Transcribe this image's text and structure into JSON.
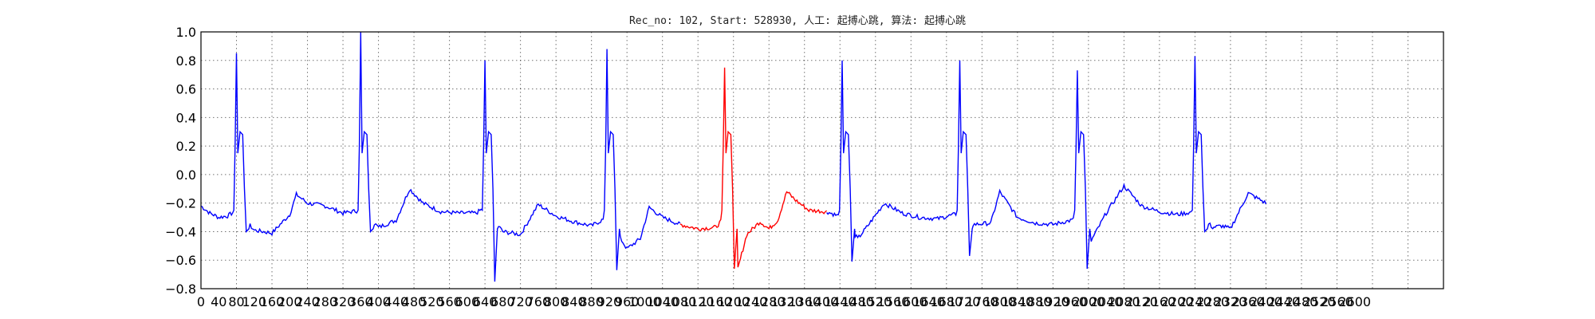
{
  "chart_data": {
    "type": "line",
    "title": "Rec_no: 102, Start: 528930, 人工: 起搏心跳, 算法: 起搏心跳",
    "xlabel": "",
    "ylabel": "",
    "xlim": [
      0,
      2800
    ],
    "ylim": [
      -0.8,
      1.0
    ],
    "grid": true,
    "y_ticks": [
      "1.0",
      "0.8",
      "0.6",
      "0.4",
      "0.2",
      "0.0",
      "−0.2",
      "−0.4",
      "−0.6",
      "−0.8"
    ],
    "y_tick_values": [
      1.0,
      0.8,
      0.6,
      0.4,
      0.2,
      0.0,
      -0.2,
      -0.4,
      -0.6,
      -0.8
    ],
    "x_ticks": [
      "0",
      "40",
      "80",
      "120",
      "160",
      "200",
      "240",
      "280",
      "320",
      "360",
      "400",
      "440",
      "480",
      "520",
      "560",
      "600",
      "640",
      "680",
      "720",
      "760",
      "800",
      "840",
      "880",
      "920",
      "960",
      "1000",
      "1040",
      "1080",
      "1120",
      "1160",
      "1200",
      "1240",
      "1280",
      "1320",
      "1360",
      "1400",
      "1440",
      "1480",
      "1520",
      "1560",
      "1600",
      "1640",
      "1680",
      "1720",
      "1760",
      "1800",
      "1840",
      "1880",
      "1920",
      "1960",
      "2000",
      "2040",
      "2080",
      "2120",
      "2160",
      "2200",
      "2240",
      "2280",
      "2320",
      "2360",
      "2400",
      "2440",
      "2480",
      "2520",
      "2560",
      "2600"
    ],
    "x_tick_values": [
      0,
      40,
      80,
      120,
      160,
      200,
      240,
      280,
      320,
      360,
      400,
      440,
      480,
      520,
      560,
      600,
      640,
      680,
      720,
      760,
      800,
      840,
      880,
      920,
      960,
      1000,
      1040,
      1080,
      1120,
      1160,
      1200,
      1240,
      1280,
      1320,
      1360,
      1400,
      1440,
      1480,
      1520,
      1560,
      1600,
      1640,
      1680,
      1720,
      1760,
      1800,
      1840,
      1880,
      1920,
      1960,
      2000,
      2040,
      2080,
      2120,
      2160,
      2200,
      2240,
      2280,
      2320,
      2360,
      2400,
      2440,
      2480,
      2520,
      2560,
      2600
    ],
    "x_grid_values": [
      0,
      80,
      160,
      240,
      320,
      400,
      480,
      560,
      640,
      720,
      800,
      880,
      960,
      1040,
      1120,
      1200,
      1280,
      1360,
      1440,
      1520,
      1600,
      1680,
      1760,
      1840,
      1920,
      2000,
      2080,
      2160,
      2240,
      2320,
      2400,
      2480,
      2560,
      2640,
      2720,
      2800
    ],
    "series": [
      {
        "color": "#0000ff",
        "beat_centers": [
          80,
          360,
          640,
          915,
          1445,
          1710,
          1975,
          2240
        ],
        "baseline_points": [
          [
            0,
            -0.22
          ],
          [
            20,
            -0.27
          ],
          [
            40,
            -0.3
          ],
          [
            60,
            -0.29
          ],
          [
            80,
            -0.25
          ],
          [
            120,
            -0.39
          ],
          [
            160,
            -0.41
          ],
          [
            200,
            -0.28
          ],
          [
            215,
            -0.14
          ],
          [
            240,
            -0.2
          ],
          [
            280,
            -0.22
          ],
          [
            320,
            -0.27
          ],
          [
            360,
            -0.25
          ],
          [
            400,
            -0.37
          ],
          [
            440,
            -0.32
          ],
          [
            470,
            -0.1
          ],
          [
            500,
            -0.2
          ],
          [
            540,
            -0.26
          ],
          [
            580,
            -0.27
          ],
          [
            620,
            -0.27
          ],
          [
            640,
            -0.23
          ],
          [
            680,
            -0.4
          ],
          [
            720,
            -0.42
          ],
          [
            760,
            -0.21
          ],
          [
            800,
            -0.29
          ],
          [
            840,
            -0.33
          ],
          [
            880,
            -0.36
          ],
          [
            915,
            -0.3
          ],
          [
            960,
            -0.52
          ],
          [
            990,
            -0.45
          ],
          [
            1010,
            -0.23
          ],
          [
            1040,
            -0.3
          ],
          [
            1080,
            -0.35
          ]
        ],
        "baseline_points_2": [
          [
            1410,
            -0.26
          ],
          [
            1445,
            -0.3
          ],
          [
            1480,
            -0.45
          ],
          [
            1500,
            -0.37
          ],
          [
            1540,
            -0.2
          ],
          [
            1580,
            -0.27
          ],
          [
            1620,
            -0.3
          ],
          [
            1660,
            -0.31
          ],
          [
            1710,
            -0.27
          ],
          [
            1740,
            -0.35
          ],
          [
            1780,
            -0.34
          ],
          [
            1800,
            -0.12
          ],
          [
            1840,
            -0.3
          ],
          [
            1880,
            -0.34
          ],
          [
            1920,
            -0.35
          ],
          [
            1975,
            -0.31
          ],
          [
            2000,
            -0.5
          ],
          [
            2040,
            -0.27
          ],
          [
            2080,
            -0.08
          ],
          [
            2120,
            -0.22
          ],
          [
            2160,
            -0.26
          ],
          [
            2200,
            -0.28
          ],
          [
            2240,
            -0.26
          ],
          [
            2280,
            -0.37
          ],
          [
            2300,
            -0.36
          ],
          [
            2320,
            -0.38
          ],
          [
            2360,
            -0.13
          ],
          [
            2400,
            -0.2
          ]
        ]
      },
      {
        "color": "#ff0000",
        "beat_centers": [
          1180
        ],
        "points": [
          [
            1080,
            -0.35
          ],
          [
            1120,
            -0.38
          ],
          [
            1160,
            -0.37
          ],
          [
            1180,
            -0.3
          ],
          [
            1210,
            -0.66
          ],
          [
            1230,
            -0.42
          ],
          [
            1260,
            -0.33
          ],
          [
            1280,
            -0.38
          ],
          [
            1300,
            -0.32
          ],
          [
            1320,
            -0.12
          ],
          [
            1340,
            -0.18
          ],
          [
            1370,
            -0.25
          ],
          [
            1410,
            -0.26
          ]
        ]
      }
    ],
    "peaks": [
      {
        "x": 80,
        "y": 0.85
      },
      {
        "x": 360,
        "y": 1.0
      },
      {
        "x": 640,
        "y": 0.8
      },
      {
        "x": 915,
        "y": 0.88
      },
      {
        "x": 1180,
        "y": 0.75
      },
      {
        "x": 1445,
        "y": 0.8
      },
      {
        "x": 1710,
        "y": 0.8
      },
      {
        "x": 1975,
        "y": 0.73
      },
      {
        "x": 2240,
        "y": 0.83
      }
    ],
    "troughs": [
      {
        "x": 655,
        "y": -0.75
      },
      {
        "x": 930,
        "y": -0.67
      },
      {
        "x": 1195,
        "y": -0.66
      },
      {
        "x": 1460,
        "y": -0.61
      },
      {
        "x": 1725,
        "y": -0.57
      },
      {
        "x": 1990,
        "y": -0.66
      }
    ]
  }
}
